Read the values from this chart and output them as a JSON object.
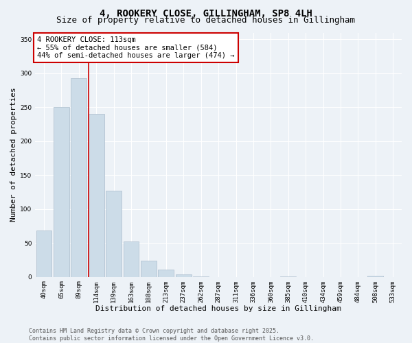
{
  "title_line1": "4, ROOKERY CLOSE, GILLINGHAM, SP8 4LH",
  "title_line2": "Size of property relative to detached houses in Gillingham",
  "xlabel": "Distribution of detached houses by size in Gillingham",
  "ylabel": "Number of detached properties",
  "bar_labels": [
    "40sqm",
    "65sqm",
    "89sqm",
    "114sqm",
    "139sqm",
    "163sqm",
    "188sqm",
    "213sqm",
    "237sqm",
    "262sqm",
    "287sqm",
    "311sqm",
    "336sqm",
    "360sqm",
    "385sqm",
    "410sqm",
    "434sqm",
    "459sqm",
    "484sqm",
    "508sqm",
    "533sqm"
  ],
  "bar_values": [
    68,
    250,
    293,
    240,
    127,
    52,
    24,
    11,
    4,
    1,
    0,
    0,
    0,
    0,
    1,
    0,
    0,
    0,
    0,
    2,
    0
  ],
  "bar_color": "#ccdce8",
  "bar_edgecolor": "#aabccc",
  "property_line_bar_index": 3,
  "annotation_text": "4 ROOKERY CLOSE: 113sqm\n← 55% of detached houses are smaller (584)\n44% of semi-detached houses are larger (474) →",
  "annotation_box_color": "#ffffff",
  "annotation_box_edgecolor": "#cc0000",
  "vline_color": "#cc0000",
  "ylim": [
    0,
    360
  ],
  "yticks": [
    0,
    50,
    100,
    150,
    200,
    250,
    300,
    350
  ],
  "footer_line1": "Contains HM Land Registry data © Crown copyright and database right 2025.",
  "footer_line2": "Contains public sector information licensed under the Open Government Licence v3.0.",
  "bg_color": "#edf2f7",
  "grid_color": "#ffffff",
  "title_fontsize": 10,
  "subtitle_fontsize": 9,
  "axis_label_fontsize": 8,
  "tick_fontsize": 6.5,
  "annotation_fontsize": 7.5,
  "footer_fontsize": 6
}
